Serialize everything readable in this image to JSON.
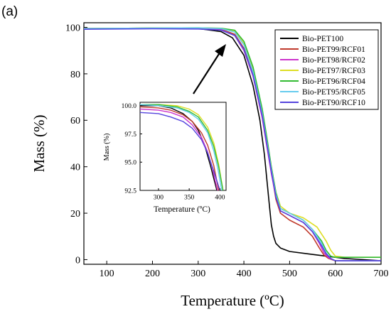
{
  "panel_label": "(a)",
  "chart_data": [
    {
      "type": "line",
      "xlabel": "Temperature (ºC)",
      "ylabel": "Mass (%)",
      "xlim": [
        50,
        700
      ],
      "ylim": [
        -2,
        102
      ],
      "xticks": [
        100,
        200,
        300,
        400,
        500,
        600,
        700
      ],
      "yticks": [
        0,
        20,
        40,
        60,
        80,
        100
      ],
      "grid": false,
      "legend_position": "top-right",
      "series": [
        {
          "name": "Bio-PET100",
          "color": "#000000",
          "x": [
            50,
            200,
            300,
            350,
            375,
            400,
            420,
            435,
            445,
            450,
            455,
            460,
            465,
            470,
            480,
            500,
            540,
            580,
            620,
            700
          ],
          "y": [
            99.5,
            99.7,
            99.5,
            98.2,
            95.5,
            88.0,
            75.0,
            60.0,
            45.0,
            35.0,
            25.0,
            15.0,
            10.0,
            7.0,
            5.0,
            3.5,
            2.5,
            1.5,
            0.5,
            -0.5
          ]
        },
        {
          "name": "Bio-PET99/RCF01",
          "color": "#c0392b",
          "x": [
            50,
            200,
            300,
            350,
            380,
            400,
            420,
            440,
            450,
            460,
            470,
            480,
            500,
            530,
            550,
            565,
            575,
            585,
            600,
            700
          ],
          "y": [
            99.5,
            99.6,
            99.6,
            99.2,
            97.0,
            91.0,
            80.0,
            62.0,
            50.0,
            38.0,
            26.0,
            20.0,
            17.0,
            14.0,
            10.0,
            5.0,
            2.0,
            0.5,
            -0.5,
            -0.5
          ]
        },
        {
          "name": "Bio-PET98/RCF02",
          "color": "#cc33cc",
          "x": [
            50,
            200,
            300,
            350,
            380,
            400,
            420,
            440,
            450,
            460,
            470,
            480,
            500,
            530,
            550,
            565,
            575,
            585,
            600,
            700
          ],
          "y": [
            99.3,
            99.5,
            99.5,
            99.0,
            96.5,
            90.0,
            79.0,
            61.0,
            49.0,
            37.0,
            27.0,
            21.0,
            19.0,
            16.0,
            12.0,
            7.0,
            3.0,
            0.8,
            -0.5,
            -0.5
          ]
        },
        {
          "name": "Bio-PET97/RCF03",
          "color": "#dddd22",
          "x": [
            50,
            200,
            300,
            350,
            380,
            400,
            420,
            440,
            450,
            460,
            470,
            480,
            500,
            530,
            560,
            580,
            590,
            600,
            620,
            700
          ],
          "y": [
            99.5,
            99.7,
            99.8,
            99.6,
            98.5,
            93.0,
            82.0,
            64.0,
            52.0,
            40.0,
            29.0,
            23.0,
            20.0,
            18.0,
            14.0,
            8.0,
            4.0,
            1.5,
            1.0,
            1.0
          ]
        },
        {
          "name": "Bio-PET96/RCF04",
          "color": "#33bb33",
          "x": [
            50,
            200,
            300,
            350,
            380,
            400,
            420,
            440,
            450,
            460,
            470,
            480,
            500,
            530,
            550,
            570,
            580,
            590,
            600,
            700
          ],
          "y": [
            99.5,
            99.7,
            99.8,
            99.6,
            98.8,
            94.0,
            83.0,
            65.0,
            53.0,
            40.0,
            29.0,
            22.0,
            20.0,
            17.0,
            13.0,
            8.0,
            4.0,
            1.5,
            1.0,
            1.0
          ]
        },
        {
          "name": "Bio-PET95/RCF05",
          "color": "#66ccee",
          "x": [
            50,
            200,
            300,
            350,
            380,
            400,
            420,
            440,
            450,
            460,
            470,
            480,
            500,
            530,
            550,
            570,
            580,
            590,
            600,
            700
          ],
          "y": [
            99.5,
            99.7,
            99.8,
            99.5,
            98.0,
            92.5,
            81.0,
            63.0,
            51.0,
            39.0,
            28.0,
            22.0,
            20.0,
            17.0,
            13.0,
            7.0,
            3.0,
            0.5,
            -0.5,
            -0.5
          ]
        },
        {
          "name": "Bio-PET90/RCF10",
          "color": "#5544dd",
          "x": [
            50,
            200,
            300,
            350,
            380,
            400,
            420,
            440,
            450,
            460,
            470,
            480,
            500,
            530,
            550,
            570,
            580,
            590,
            600,
            700
          ],
          "y": [
            99.2,
            99.4,
            99.3,
            98.8,
            96.5,
            90.5,
            79.5,
            62.0,
            50.0,
            38.0,
            27.0,
            21.0,
            19.0,
            16.0,
            12.0,
            6.0,
            2.5,
            0.5,
            -0.5,
            -0.5
          ]
        }
      ]
    },
    {
      "type": "line",
      "xlabel": "Temperature (ºC)",
      "ylabel": "Mass (%)",
      "xlim": [
        270,
        410
      ],
      "ylim": [
        92.5,
        100.3
      ],
      "xticks": [
        300,
        350,
        400
      ],
      "yticks": [
        92.5,
        95.0,
        97.5,
        100.0
      ],
      "ytick_labels": [
        "92.5",
        "95.0",
        "97.5",
        "100.0"
      ],
      "grid": false,
      "series": [
        {
          "name": "Bio-PET100",
          "color": "#000000",
          "x": [
            270,
            300,
            320,
            340,
            355,
            365,
            375,
            385,
            395
          ],
          "y": [
            100.0,
            100.0,
            99.8,
            99.3,
            98.6,
            97.8,
            96.5,
            94.6,
            92.3
          ]
        },
        {
          "name": "Bio-PET99/RCF01",
          "color": "#c0392b",
          "x": [
            270,
            300,
            320,
            340,
            355,
            370,
            380,
            390,
            398
          ],
          "y": [
            99.9,
            99.8,
            99.6,
            99.2,
            98.6,
            97.6,
            96.5,
            94.7,
            92.3
          ]
        },
        {
          "name": "Bio-PET98/RCF02",
          "color": "#cc33cc",
          "x": [
            270,
            300,
            320,
            340,
            355,
            370,
            380,
            388,
            396
          ],
          "y": [
            99.7,
            99.6,
            99.4,
            99.0,
            98.3,
            97.2,
            95.9,
            94.4,
            92.3
          ]
        },
        {
          "name": "Bio-PET97/RCF03",
          "color": "#dddd22",
          "x": [
            270,
            300,
            330,
            350,
            365,
            380,
            390,
            398,
            405
          ],
          "y": [
            100.1,
            100.1,
            100.0,
            99.7,
            99.2,
            98.1,
            96.7,
            94.8,
            92.3
          ]
        },
        {
          "name": "Bio-PET96/RCF04",
          "color": "#33bb33",
          "x": [
            270,
            300,
            330,
            350,
            365,
            380,
            390,
            398,
            405
          ],
          "y": [
            100.1,
            100.1,
            99.9,
            99.5,
            99.0,
            97.8,
            96.4,
            94.6,
            92.3
          ]
        },
        {
          "name": "Bio-PET95/RCF05",
          "color": "#66ccee",
          "x": [
            270,
            300,
            330,
            350,
            365,
            380,
            390,
            397,
            403
          ],
          "y": [
            100.1,
            100.0,
            99.8,
            99.4,
            98.8,
            97.6,
            96.0,
            94.3,
            92.3
          ]
        },
        {
          "name": "Bio-PET90/RCF10",
          "color": "#5544dd",
          "x": [
            270,
            300,
            320,
            340,
            355,
            370,
            380,
            390,
            400
          ],
          "y": [
            99.4,
            99.3,
            99.0,
            98.6,
            98.0,
            97.0,
            95.8,
            94.2,
            92.3
          ]
        }
      ]
    }
  ]
}
